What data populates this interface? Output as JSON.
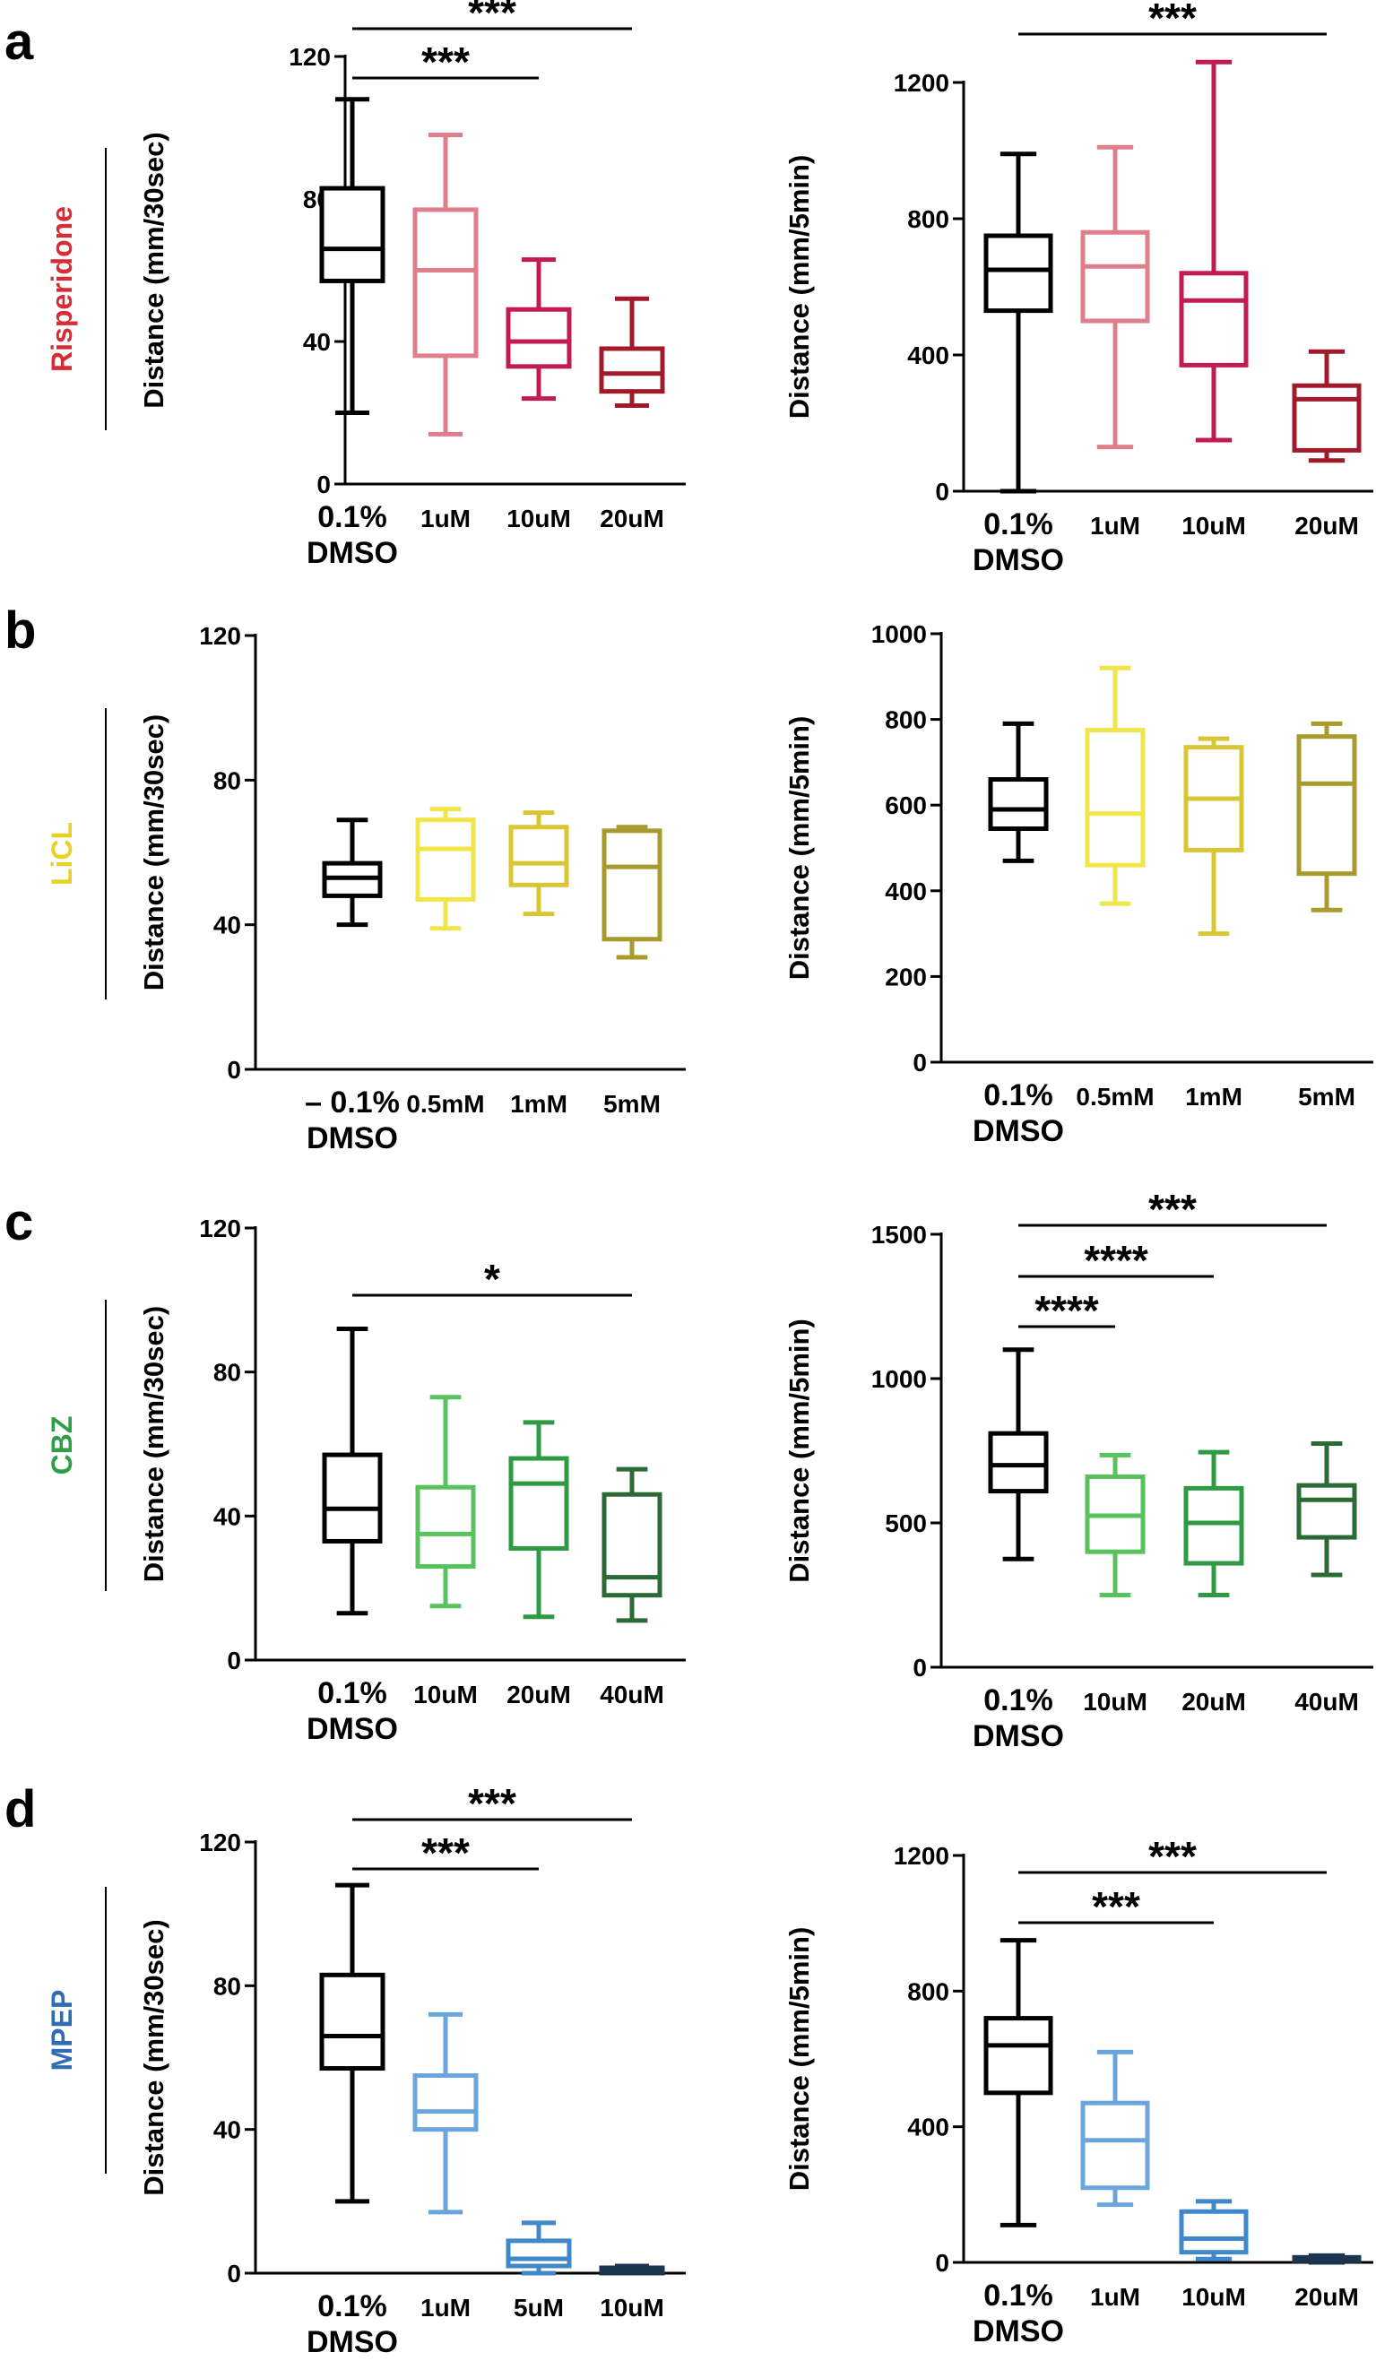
{
  "figure": {
    "panels": [
      {
        "letter": "a",
        "drug": "Risperidone",
        "drug_color": "#d62c36"
      },
      {
        "letter": "b",
        "drug": "LiCL",
        "drug_color": "#e8d22a"
      },
      {
        "letter": "c",
        "drug": "CBZ",
        "drug_color": "#2f9e49"
      },
      {
        "letter": "d",
        "drug": "MPEP",
        "drug_color": "#2f6db2"
      }
    ]
  },
  "chart_data": [
    {
      "id": "a-30sec",
      "panel": "a",
      "type": "box",
      "ylabel": "Distance (mm/30sec)",
      "ylim": [
        0,
        120
      ],
      "yticks": [
        0,
        40,
        80,
        120
      ],
      "categories": [
        [
          "0.1%",
          "DMSO"
        ],
        [
          "1uM"
        ],
        [
          "10uM"
        ],
        [
          "20uM"
        ]
      ],
      "colors": [
        "#000000",
        "#e07f8c",
        "#c21a55",
        "#a11a2a"
      ],
      "boxes": [
        {
          "min": 20,
          "q1": 57,
          "median": 66,
          "q3": 83,
          "max": 108
        },
        {
          "min": 14,
          "q1": 36,
          "median": 60,
          "q3": 77,
          "max": 98
        },
        {
          "min": 24,
          "q1": 33,
          "median": 40,
          "q3": 49,
          "max": 63
        },
        {
          "min": 22,
          "q1": 26,
          "median": 31,
          "q3": 38,
          "max": 52
        }
      ],
      "significance": [
        {
          "from": 0,
          "to": 2,
          "label": "***"
        },
        {
          "from": 0,
          "to": 3,
          "label": "***"
        }
      ]
    },
    {
      "id": "a-5min",
      "panel": "a",
      "type": "box",
      "ylabel": "Distance (mm/5min)",
      "ylim": [
        0,
        1200
      ],
      "yticks": [
        0,
        400,
        800,
        1200
      ],
      "categories": [
        [
          "0.1%",
          "DMSO"
        ],
        [
          "1uM"
        ],
        [
          "10uM"
        ],
        [
          "20uM"
        ]
      ],
      "colors": [
        "#000000",
        "#e07f8c",
        "#c21a55",
        "#a11a2a"
      ],
      "boxes": [
        {
          "min": 0,
          "q1": 530,
          "median": 650,
          "q3": 750,
          "max": 990
        },
        {
          "min": 130,
          "q1": 500,
          "median": 660,
          "q3": 760,
          "max": 1010
        },
        {
          "min": 150,
          "q1": 370,
          "median": 560,
          "q3": 640,
          "max": 1260
        },
        {
          "min": 90,
          "q1": 120,
          "median": 270,
          "q3": 310,
          "max": 410
        }
      ],
      "significance": [
        {
          "from": 0,
          "to": 3,
          "label": "***"
        }
      ]
    },
    {
      "id": "b-30sec",
      "panel": "b",
      "type": "box",
      "ylabel": "Distance (mm/30sec)",
      "ylim": [
        0,
        120
      ],
      "yticks": [
        0,
        40,
        80,
        120
      ],
      "categories": [
        [
          "– 0.1%",
          "DMSO"
        ],
        [
          "0.5mM"
        ],
        [
          "1mM"
        ],
        [
          "5mM"
        ]
      ],
      "colors": [
        "#000000",
        "#f0e64a",
        "#d9c634",
        "#a89a2c"
      ],
      "boxes": [
        {
          "min": 40,
          "q1": 48,
          "median": 53,
          "q3": 57,
          "max": 69
        },
        {
          "min": 39,
          "q1": 47,
          "median": 61,
          "q3": 69,
          "max": 72
        },
        {
          "min": 43,
          "q1": 51,
          "median": 57,
          "q3": 67,
          "max": 71
        },
        {
          "min": 31,
          "q1": 36,
          "median": 56,
          "q3": 66,
          "max": 67
        }
      ],
      "significance": []
    },
    {
      "id": "b-5min",
      "panel": "b",
      "type": "box",
      "ylabel": "Distance (mm/5min)",
      "ylim": [
        0,
        1000
      ],
      "yticks": [
        0,
        200,
        400,
        600,
        800,
        1000
      ],
      "categories": [
        [
          "0.1%",
          "DMSO"
        ],
        [
          "0.5mM"
        ],
        [
          "1mM"
        ],
        [
          "5mM"
        ]
      ],
      "colors": [
        "#000000",
        "#f0e64a",
        "#d9c634",
        "#a89a2c"
      ],
      "boxes": [
        {
          "min": 470,
          "q1": 545,
          "median": 590,
          "q3": 660,
          "max": 790
        },
        {
          "min": 370,
          "q1": 460,
          "median": 580,
          "q3": 775,
          "max": 920
        },
        {
          "min": 300,
          "q1": 495,
          "median": 615,
          "q3": 735,
          "max": 755
        },
        {
          "min": 355,
          "q1": 440,
          "median": 650,
          "q3": 760,
          "max": 790
        }
      ],
      "significance": []
    },
    {
      "id": "c-30sec",
      "panel": "c",
      "type": "box",
      "ylabel": "Distance (mm/30sec)",
      "ylim": [
        0,
        120
      ],
      "yticks": [
        0,
        40,
        80,
        120
      ],
      "categories": [
        [
          "0.1%",
          "DMSO"
        ],
        [
          "10uM"
        ],
        [
          "20uM"
        ],
        [
          "40uM"
        ]
      ],
      "colors": [
        "#000000",
        "#58c25c",
        "#2e9a44",
        "#2a6a34"
      ],
      "boxes": [
        {
          "min": 13,
          "q1": 33,
          "median": 42,
          "q3": 57,
          "max": 92
        },
        {
          "min": 15,
          "q1": 26,
          "median": 35,
          "q3": 48,
          "max": 73
        },
        {
          "min": 12,
          "q1": 31,
          "median": 49,
          "q3": 56,
          "max": 66
        },
        {
          "min": 11,
          "q1": 18,
          "median": 23,
          "q3": 46,
          "max": 53
        }
      ],
      "significance": [
        {
          "from": 0,
          "to": 3,
          "label": "*"
        }
      ]
    },
    {
      "id": "c-5min",
      "panel": "c",
      "type": "box",
      "ylabel": "Distance (mm/5min)",
      "ylim": [
        0,
        1500
      ],
      "yticks": [
        0,
        500,
        1000,
        1500
      ],
      "categories": [
        [
          "0.1%",
          "DMSO"
        ],
        [
          "10uM"
        ],
        [
          "20uM"
        ],
        [
          "40uM"
        ]
      ],
      "colors": [
        "#000000",
        "#58c25c",
        "#2e9a44",
        "#2a6a34"
      ],
      "boxes": [
        {
          "min": 375,
          "q1": 610,
          "median": 700,
          "q3": 810,
          "max": 1100
        },
        {
          "min": 250,
          "q1": 400,
          "median": 525,
          "q3": 660,
          "max": 735
        },
        {
          "min": 250,
          "q1": 360,
          "median": 500,
          "q3": 620,
          "max": 745
        },
        {
          "min": 320,
          "q1": 450,
          "median": 580,
          "q3": 630,
          "max": 775
        }
      ],
      "significance": [
        {
          "from": 0,
          "to": 1,
          "label": "****"
        },
        {
          "from": 0,
          "to": 2,
          "label": "****"
        },
        {
          "from": 0,
          "to": 3,
          "label": "***"
        }
      ]
    },
    {
      "id": "d-30sec",
      "panel": "d",
      "type": "box",
      "ylabel": "Distance (mm/30sec)",
      "ylim": [
        0,
        120
      ],
      "yticks": [
        0,
        40,
        80,
        120
      ],
      "categories": [
        [
          "0.1%",
          "DMSO"
        ],
        [
          "1uM"
        ],
        [
          "5uM"
        ],
        [
          "10uM"
        ]
      ],
      "colors": [
        "#000000",
        "#6aa6dc",
        "#3f88c9",
        "#1b3550"
      ],
      "boxes": [
        {
          "min": 20,
          "q1": 57,
          "median": 66,
          "q3": 83,
          "max": 108
        },
        {
          "min": 17,
          "q1": 40,
          "median": 45,
          "q3": 55,
          "max": 72
        },
        {
          "min": 0,
          "q1": 2,
          "median": 4,
          "q3": 9,
          "max": 14
        },
        {
          "min": 0,
          "q1": 0,
          "median": 0.5,
          "q3": 1.5,
          "max": 2
        }
      ],
      "significance": [
        {
          "from": 0,
          "to": 2,
          "label": "***"
        },
        {
          "from": 0,
          "to": 3,
          "label": "***"
        }
      ]
    },
    {
      "id": "d-5min",
      "panel": "d",
      "type": "box",
      "ylabel": "Distance (mm/5min)",
      "ylim": [
        0,
        1200
      ],
      "yticks": [
        0,
        400,
        800,
        1200
      ],
      "categories": [
        [
          "0.1%",
          "DMSO"
        ],
        [
          "1uM"
        ],
        [
          "10uM"
        ],
        [
          "20uM"
        ]
      ],
      "colors": [
        "#000000",
        "#6aa6dc",
        "#3f88c9",
        "#1b3550"
      ],
      "boxes": [
        {
          "min": 110,
          "q1": 500,
          "median": 640,
          "q3": 720,
          "max": 950
        },
        {
          "min": 170,
          "q1": 220,
          "median": 360,
          "q3": 470,
          "max": 620
        },
        {
          "min": 10,
          "q1": 30,
          "median": 70,
          "q3": 150,
          "max": 180
        },
        {
          "min": 0,
          "q1": 5,
          "median": 10,
          "q3": 15,
          "max": 20
        }
      ],
      "significance": [
        {
          "from": 0,
          "to": 2,
          "label": "***"
        },
        {
          "from": 0,
          "to": 3,
          "label": "***"
        }
      ]
    }
  ]
}
